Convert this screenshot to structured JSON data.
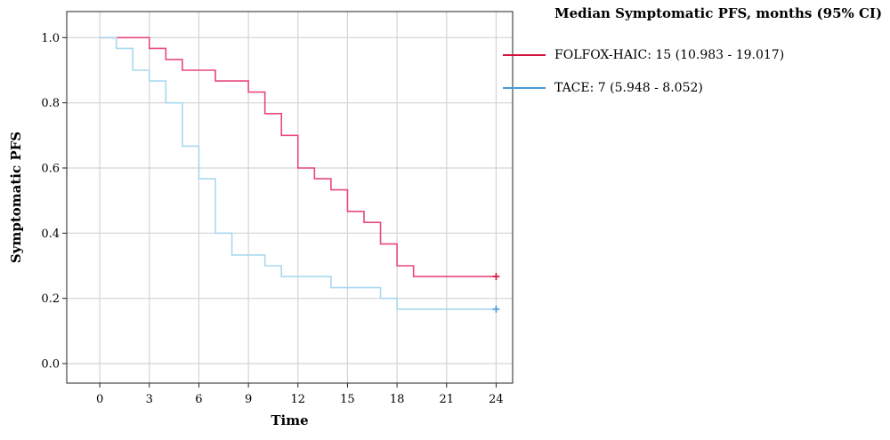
{
  "chart_data": {
    "type": "line",
    "step": true,
    "xlabel": "Time",
    "ylabel": "Symptomatic PFS",
    "xlim": [
      -2,
      25
    ],
    "ylim": [
      -0.06,
      1.08
    ],
    "xticks": [
      0,
      3,
      6,
      9,
      12,
      15,
      18,
      21,
      24
    ],
    "yticks": [
      0.0,
      0.2,
      0.4,
      0.6,
      0.8,
      1.0
    ],
    "xtick_labels": [
      "0",
      "3",
      "6",
      "9",
      "12",
      "15",
      "18",
      "21",
      "24"
    ],
    "ytick_labels": [
      "0.0",
      "0.2",
      "0.4",
      "0.6",
      "0.8",
      "1.0"
    ],
    "grid": true,
    "legend_position": "top-right outside",
    "legend_title": "Median Symptomatic PFS, months (95% CI)",
    "series": [
      {
        "name": "FOLFOX-HAIC: 15 (10.983 - 19.017)",
        "color": "#e8487a",
        "legend_color": "#d2143c",
        "x": [
          0,
          3,
          4,
          5,
          7,
          9,
          10,
          11,
          12,
          13,
          14,
          15,
          16,
          17,
          18,
          19,
          24
        ],
        "y": [
          1.0,
          0.967,
          0.933,
          0.9,
          0.867,
          0.833,
          0.767,
          0.7,
          0.6,
          0.567,
          0.533,
          0.467,
          0.433,
          0.367,
          0.3,
          0.267,
          0.267
        ],
        "censored": [
          [
            24,
            0.267
          ]
        ]
      },
      {
        "name": "TACE: 7 (5.948 - 8.052)",
        "color": "#a8d8ef",
        "legend_color": "#4a9ad6",
        "x": [
          0,
          1,
          2,
          3,
          4,
          5,
          6,
          7,
          8,
          10,
          11,
          14,
          17,
          18,
          24
        ],
        "y": [
          1.0,
          0.967,
          0.9,
          0.867,
          0.8,
          0.667,
          0.567,
          0.4,
          0.333,
          0.3,
          0.267,
          0.233,
          0.2,
          0.167,
          0.167
        ],
        "censored": [
          [
            24,
            0.167
          ]
        ]
      }
    ]
  }
}
